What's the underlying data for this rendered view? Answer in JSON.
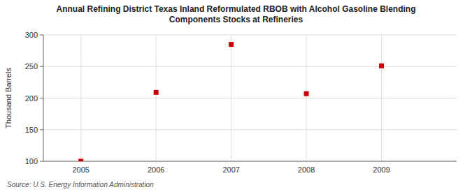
{
  "chart_data": {
    "type": "scatter",
    "title": "Annual Refining District Texas Inland Reformulated RBOB with Alcohol Gasoline Blending\nComponents Stocks at Refineries",
    "ylabel": "Thousand Barrels",
    "source": "Source: U.S. Energy Information Administration",
    "x": [
      2005,
      2006,
      2007,
      2008,
      2009
    ],
    "values": [
      100,
      209,
      285,
      207,
      251
    ],
    "xlim": [
      2004.5,
      2010.0
    ],
    "ylim": [
      100,
      300
    ],
    "yticks": [
      100,
      150,
      200,
      250,
      300
    ],
    "xticks": [
      2005,
      2006,
      2007,
      2008,
      2009
    ],
    "color": "#cc0000",
    "marker": "square",
    "grid": true
  }
}
